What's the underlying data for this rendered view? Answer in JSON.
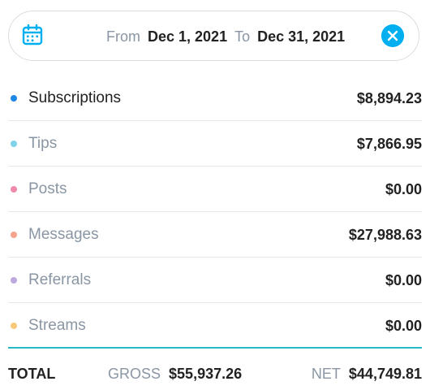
{
  "date_filter": {
    "from_label": "From",
    "from_value": "Dec 1, 2021",
    "to_label": "To",
    "to_value": "Dec 31, 2021",
    "calendar_icon": "calendar-icon",
    "clear_icon": "close-circle-icon",
    "accent_color": "#00aff0"
  },
  "categories": [
    {
      "label": "Subscriptions",
      "amount": "$8,894.23",
      "color": "#1e88e5",
      "active": true
    },
    {
      "label": "Tips",
      "amount": "$7,866.95",
      "color": "#7ed3e8",
      "active": false
    },
    {
      "label": "Posts",
      "amount": "$0.00",
      "color": "#f08aa8",
      "active": false
    },
    {
      "label": "Messages",
      "amount": "$27,988.63",
      "color": "#f4a38c",
      "active": false
    },
    {
      "label": "Referrals",
      "amount": "$0.00",
      "color": "#bda9e0",
      "active": false
    },
    {
      "label": "Streams",
      "amount": "$0.00",
      "color": "#f8c97a",
      "active": false
    }
  ],
  "totals": {
    "label": "TOTAL",
    "gross_label": "GROSS",
    "gross_value": "$55,937.26",
    "net_label": "NET",
    "net_value": "$44,749.81"
  }
}
